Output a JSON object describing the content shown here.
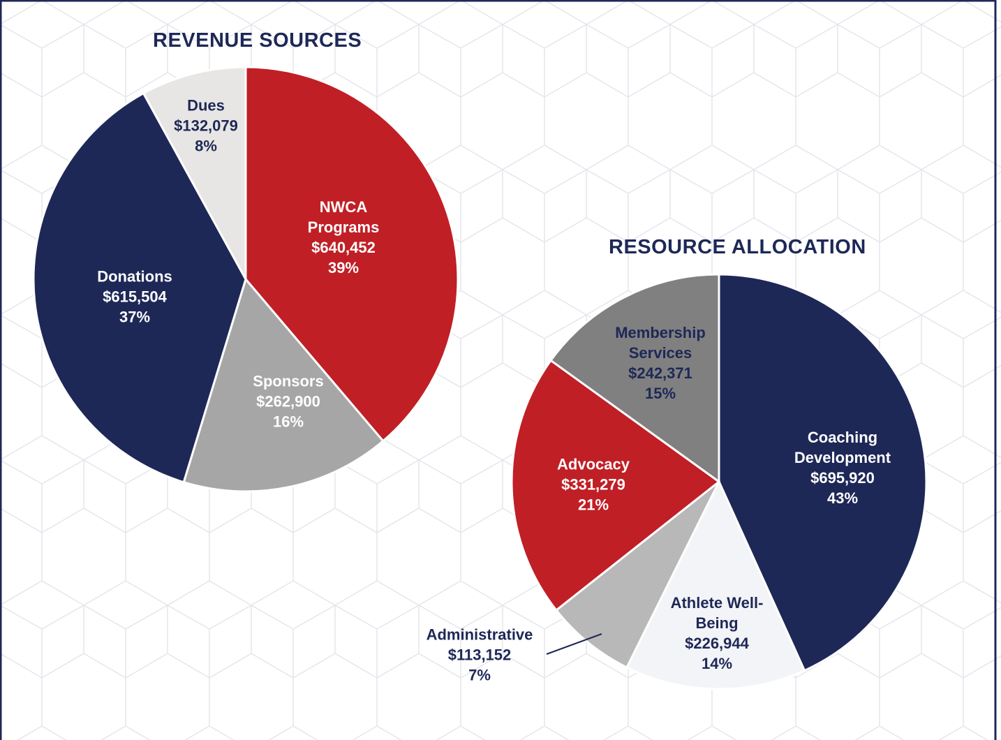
{
  "chart_data": [
    {
      "type": "pie",
      "title": "REVENUE SOURCES",
      "categories": [
        "NWCA Programs",
        "Sponsors",
        "Donations",
        "Dues"
      ],
      "values": [
        640452,
        262900,
        615504,
        132079
      ],
      "value_labels": [
        "$640,452",
        "$262,900",
        "$615,504",
        "$132,079"
      ],
      "percent_labels": [
        "39%",
        "16%",
        "37%",
        "8%"
      ],
      "colors": [
        "#c01f26",
        "#a6a6a6",
        "#1e2857",
        "#e8e6e4"
      ]
    },
    {
      "type": "pie",
      "title": "RESOURCE ALLOCATION",
      "categories": [
        "Coaching Development",
        "Athlete Well-Being",
        "Administrative",
        "Advocacy",
        "Membership Services"
      ],
      "values": [
        695920,
        226944,
        113152,
        331279,
        242371
      ],
      "value_labels": [
        "$695,920",
        "$226,944",
        "$113,152",
        "$331,279",
        "$242,371"
      ],
      "percent_labels": [
        "43%",
        "14%",
        "7%",
        "21%",
        "15%"
      ],
      "colors": [
        "#1e2857",
        "#f3f4f7",
        "#b8b8b8",
        "#c01f26",
        "#808080"
      ]
    }
  ]
}
